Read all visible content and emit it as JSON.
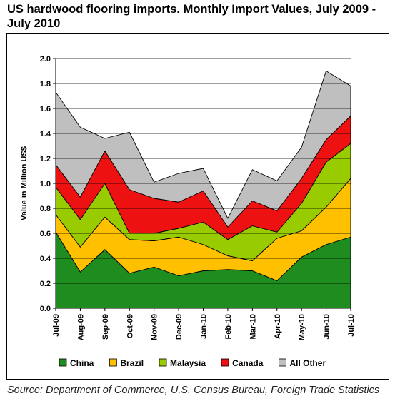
{
  "title": "US hardwood flooring imports. Monthly Import Values, July 2009 - July 2010",
  "source": "Source: Department of Commerce, U.S. Census Bureau, Foreign Trade Statistics",
  "chart_data": {
    "type": "area",
    "stacked": true,
    "ylabel": "Value in Million US$",
    "xlabel": "",
    "ylim": [
      0,
      2.0
    ],
    "ytick_step": 0.2,
    "grid": true,
    "legend_position": "bottom",
    "categories": [
      "Jul-09",
      "Aug-09",
      "Sep-09",
      "Oct-09",
      "Nov-09",
      "Dec-09",
      "Jan-10",
      "Feb-10",
      "Mar-10",
      "Apr-10",
      "May-10",
      "Jun-10",
      "Jul-10"
    ],
    "series": [
      {
        "name": "China",
        "color": "#1e8c1e",
        "values": [
          0.61,
          0.29,
          0.47,
          0.28,
          0.33,
          0.26,
          0.3,
          0.31,
          0.3,
          0.22,
          0.41,
          0.51,
          0.57
        ]
      },
      {
        "name": "Brazil",
        "color": "#ffc000",
        "values": [
          0.14,
          0.2,
          0.26,
          0.27,
          0.21,
          0.31,
          0.21,
          0.11,
          0.08,
          0.34,
          0.21,
          0.3,
          0.47
        ]
      },
      {
        "name": "Malaysia",
        "color": "#99cc00",
        "values": [
          0.22,
          0.22,
          0.27,
          0.05,
          0.06,
          0.07,
          0.18,
          0.13,
          0.28,
          0.05,
          0.22,
          0.36,
          0.28
        ]
      },
      {
        "name": "Canada",
        "color": "#ee1111",
        "values": [
          0.18,
          0.18,
          0.26,
          0.35,
          0.28,
          0.21,
          0.25,
          0.1,
          0.2,
          0.17,
          0.2,
          0.18,
          0.22
        ]
      },
      {
        "name": "All Other",
        "color": "#bfbfbf",
        "values": [
          0.58,
          0.56,
          0.1,
          0.46,
          0.13,
          0.23,
          0.18,
          0.07,
          0.25,
          0.24,
          0.25,
          0.55,
          0.24
        ]
      }
    ]
  }
}
